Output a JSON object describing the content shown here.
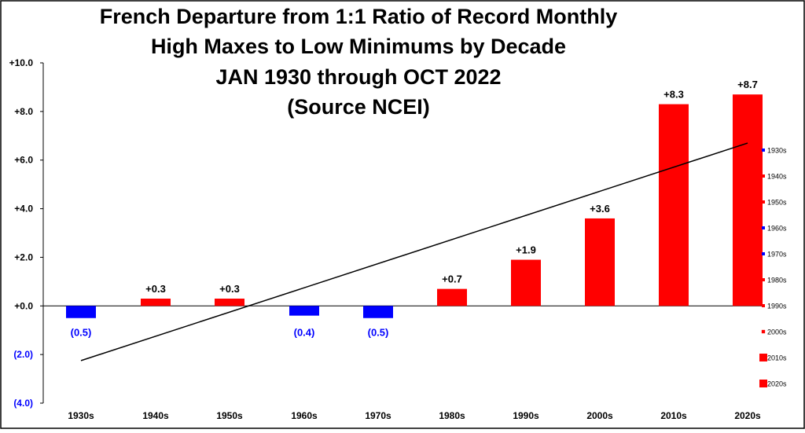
{
  "chart_data": {
    "type": "bar",
    "title_lines": [
      "French Departure from 1:1 Ratio of Record Monthly",
      "High Maxes to Low Minimums by Decade",
      "JAN 1930 through OCT 2022",
      "(Source NCEI)"
    ],
    "categories": [
      "1930s",
      "1940s",
      "1950s",
      "1960s",
      "1970s",
      "1980s",
      "1990s",
      "2000s",
      "2010s",
      "2020s"
    ],
    "values": [
      -0.5,
      0.3,
      0.3,
      -0.4,
      -0.5,
      0.7,
      1.9,
      3.6,
      8.3,
      8.7
    ],
    "value_labels": [
      "(0.5)",
      "+0.3",
      "+0.3",
      "(0.4)",
      "(0.5)",
      "+0.7",
      "+1.9",
      "+3.6",
      "+8.3",
      "+8.7"
    ],
    "ylim": [
      -4,
      10
    ],
    "yticks": [
      10,
      8,
      6,
      4,
      2,
      0,
      -2,
      -4
    ],
    "ytick_labels": [
      "+10.0",
      "+8.0",
      "+6.0",
      "+4.0",
      "+2.0",
      "+0.0",
      "(2.0)",
      "(4.0)"
    ],
    "trendline": {
      "start": -2.25,
      "end": 6.7
    },
    "legend": {
      "position": "right",
      "entries": [
        "1930s",
        "1940s",
        "1950s",
        "1960s",
        "1970s",
        "1980s",
        "1990s",
        "2000s",
        "2010s",
        "2020s"
      ]
    },
    "colors": {
      "positive": "#ff0000",
      "negative": "#0000ff",
      "negative_label": "#0000ff",
      "trendline": "#000000"
    }
  }
}
